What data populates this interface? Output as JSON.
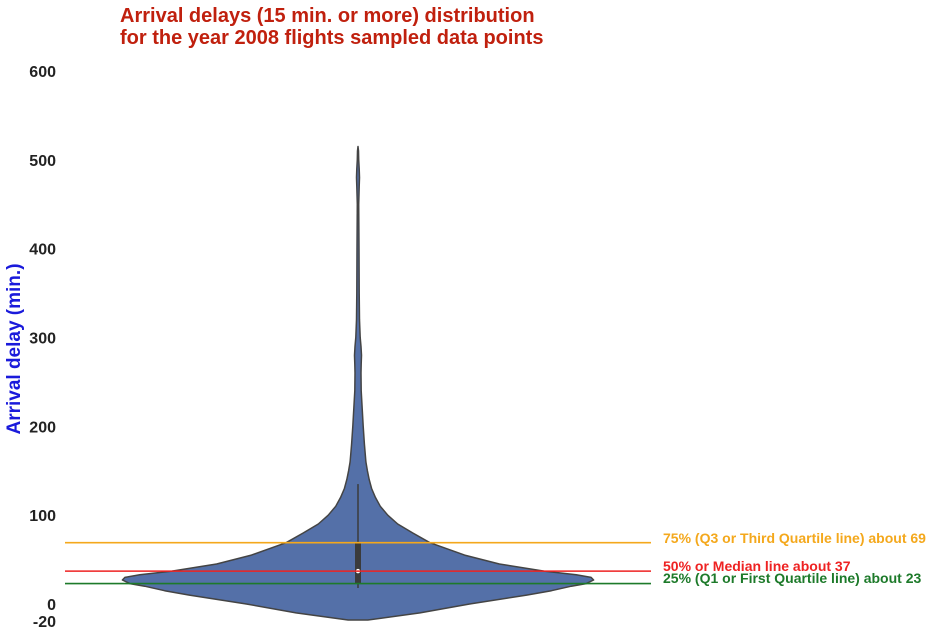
{
  "chart_data": {
    "type": "violin",
    "title_lines": [
      "Arrival delays (15 min. or more) distribution",
      "for the year 2008 flights sampled data points"
    ],
    "ylabel": "Arrival delay (min.)",
    "xlabel": "",
    "ylim": [
      -20,
      600
    ],
    "y_ticks": [
      600,
      500,
      400,
      300,
      200,
      100,
      0,
      -20
    ],
    "grid": false,
    "colors": {
      "title": "#c0200e",
      "ylabel": "#1a1adb",
      "violin_fill": "#5470a8",
      "violin_edge": "#444444",
      "q3": "#f4a81c",
      "median": "#ee2222",
      "q1": "#1d7a2a"
    },
    "violin_profile": {
      "y": [
        -18,
        -10,
        0,
        10,
        15,
        20,
        23,
        27,
        30,
        33,
        37,
        45,
        55,
        69,
        80,
        90,
        100,
        110,
        120,
        130,
        140,
        150,
        160,
        180,
        200,
        220,
        240,
        260,
        270,
        280,
        290,
        300,
        320,
        350,
        400,
        450,
        470,
        480,
        490,
        500,
        510,
        515
      ],
      "half_width": [
        0.04,
        0.25,
        0.45,
        0.68,
        0.78,
        0.86,
        0.92,
        0.95,
        0.94,
        0.88,
        0.75,
        0.57,
        0.43,
        0.29,
        0.22,
        0.16,
        0.12,
        0.09,
        0.07,
        0.055,
        0.045,
        0.038,
        0.032,
        0.026,
        0.021,
        0.017,
        0.013,
        0.012,
        0.013,
        0.014,
        0.012,
        0.009,
        0.006,
        0.005,
        0.004,
        0.003,
        0.005,
        0.006,
        0.005,
        0.003,
        0.002,
        0.0
      ]
    },
    "inner_box": {
      "whisker_low": 18,
      "whisker_high": 135,
      "q1": 23,
      "median": 37,
      "q3": 69
    },
    "reference_lines": [
      {
        "key": "q3",
        "value": 69,
        "label": "75% (Q3 or Third Quartile line) about 69"
      },
      {
        "key": "median",
        "value": 37,
        "label": "50% or Median line about 37"
      },
      {
        "key": "q1",
        "value": 23,
        "label": "25% (Q1 or First Quartile line) about 23"
      }
    ]
  }
}
